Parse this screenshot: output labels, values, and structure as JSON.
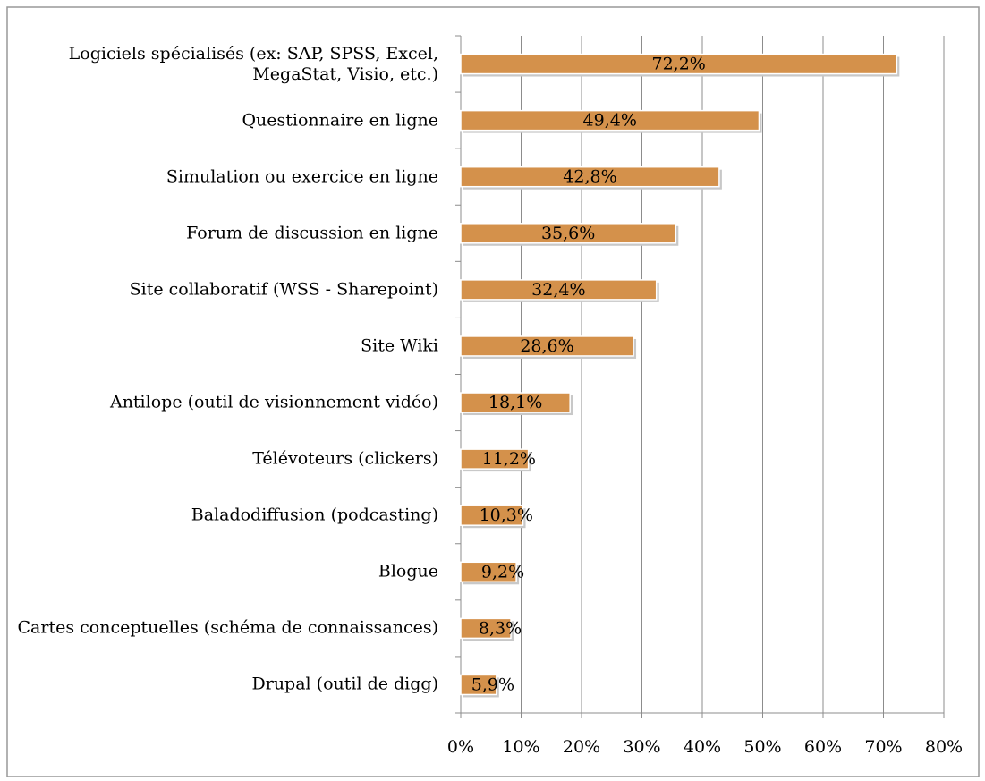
{
  "chart_data": {
    "type": "barh",
    "categories": [
      "Logiciels spécialisés (ex: SAP, SPSS, Excel, MegaStat, Visio, etc.)",
      "Questionnaire en ligne",
      "Simulation ou exercice en ligne",
      "Forum de discussion en ligne",
      "Site collaboratif (WSS - Sharepoint)",
      "Site Wiki",
      "Antilope (outil de visionnement vidéo)",
      "Télévoteurs (clickers)",
      "Baladodiffusion (podcasting)",
      "Blogue",
      "Cartes conceptuelles (schéma de connaissances)",
      "Drupal (outil de digg)"
    ],
    "values": [
      72.2,
      49.4,
      42.8,
      35.6,
      32.4,
      28.6,
      18.1,
      11.2,
      10.3,
      9.2,
      8.3,
      5.9
    ],
    "value_labels": [
      "72,2%",
      "49,4%",
      "42,8%",
      "35,6%",
      "32,4%",
      "28,6%",
      "18,1%",
      "11,2%",
      "10,3%",
      "9,2%",
      "8,3%",
      "5,9%"
    ],
    "color": "#d4914b",
    "xlim": [
      0,
      80
    ],
    "xticks": [
      {
        "value": 0,
        "label": "0%"
      },
      {
        "value": 10,
        "label": "10%"
      },
      {
        "value": 20,
        "label": "20%"
      },
      {
        "value": 30,
        "label": "30%"
      },
      {
        "value": 40,
        "label": "40%"
      },
      {
        "value": 50,
        "label": "50%"
      },
      {
        "value": 60,
        "label": "60%"
      },
      {
        "value": 70,
        "label": "70%"
      },
      {
        "value": 80,
        "label": "80%"
      }
    ],
    "grid": true
  }
}
